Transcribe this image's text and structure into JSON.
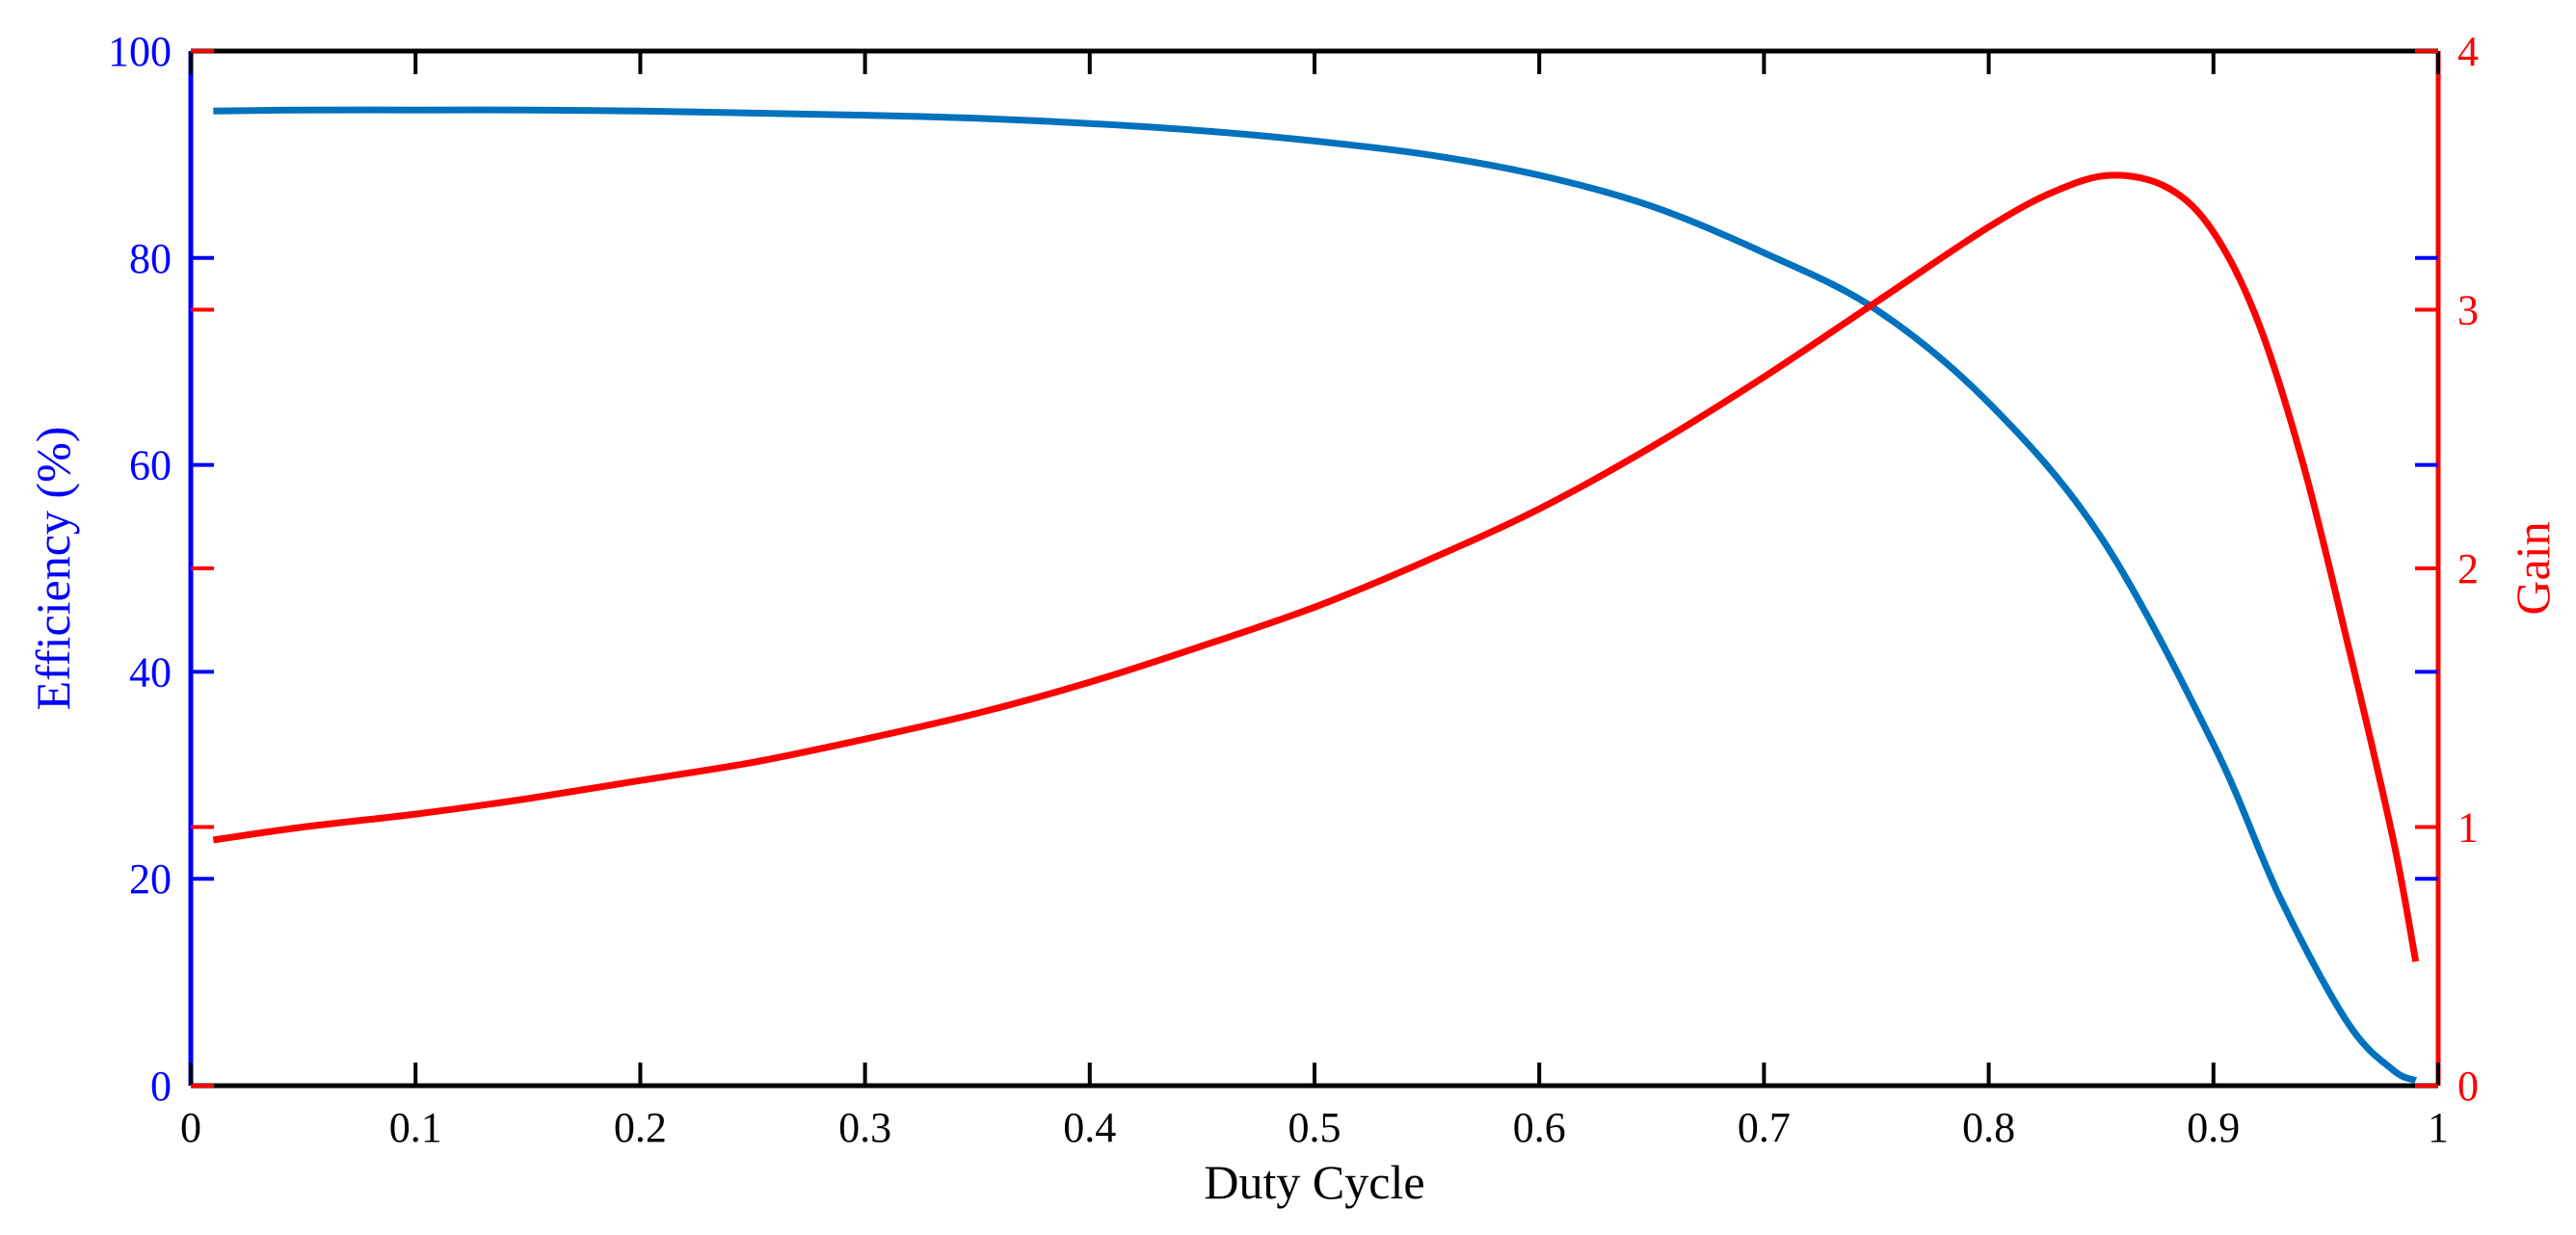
{
  "chart_data": {
    "type": "line",
    "title": "",
    "xlabel": "Duty Cycle",
    "ylabel_left": "Efficiency (%)",
    "ylabel_right": "Gain",
    "xlim": [
      0,
      1
    ],
    "ylim_left": [
      0,
      100
    ],
    "ylim_right": [
      0,
      4
    ],
    "x_ticks": [
      "0",
      "0.1",
      "0.2",
      "0.3",
      "0.4",
      "0.5",
      "0.6",
      "0.7",
      "0.8",
      "0.9",
      "1"
    ],
    "y_left_ticks": [
      "0",
      "20",
      "40",
      "60",
      "80",
      "100"
    ],
    "y_right_ticks": [
      "0",
      "1",
      "2",
      "3",
      "4"
    ],
    "grid": false,
    "legend": "none",
    "colors": {
      "left_axis": "#0000ff",
      "right_axis": "#ff0000",
      "bottom_axis": "#000000",
      "efficiency_line": "#0072bd",
      "gain_line": "#ff0000"
    },
    "series": [
      {
        "axis": "left",
        "x": [
          0.01,
          0.05,
          0.1,
          0.15,
          0.2,
          0.25,
          0.3,
          0.35,
          0.4,
          0.45,
          0.5,
          0.55,
          0.6,
          0.65,
          0.7,
          0.75,
          0.8,
          0.85,
          0.9,
          0.93,
          0.96,
          0.98,
          0.99
        ],
        "values": [
          94.2,
          94.3,
          94.3,
          94.3,
          94.2,
          94.0,
          93.8,
          93.5,
          93.0,
          92.3,
          91.3,
          90.0,
          88.0,
          85.0,
          80.5,
          75.0,
          66.0,
          53.0,
          33.0,
          18.0,
          6.0,
          1.5,
          0.5
        ]
      },
      {
        "axis": "right",
        "x": [
          0.01,
          0.05,
          0.1,
          0.15,
          0.2,
          0.25,
          0.3,
          0.35,
          0.4,
          0.45,
          0.5,
          0.55,
          0.6,
          0.65,
          0.7,
          0.75,
          0.8,
          0.83,
          0.855,
          0.88,
          0.9,
          0.92,
          0.94,
          0.96,
          0.98,
          0.99
        ],
        "values": [
          0.95,
          1.0,
          1.05,
          1.11,
          1.18,
          1.25,
          1.34,
          1.44,
          1.56,
          1.7,
          1.85,
          2.03,
          2.23,
          2.47,
          2.74,
          3.03,
          3.32,
          3.46,
          3.52,
          3.47,
          3.3,
          2.95,
          2.4,
          1.7,
          0.95,
          0.48
        ]
      }
    ]
  }
}
